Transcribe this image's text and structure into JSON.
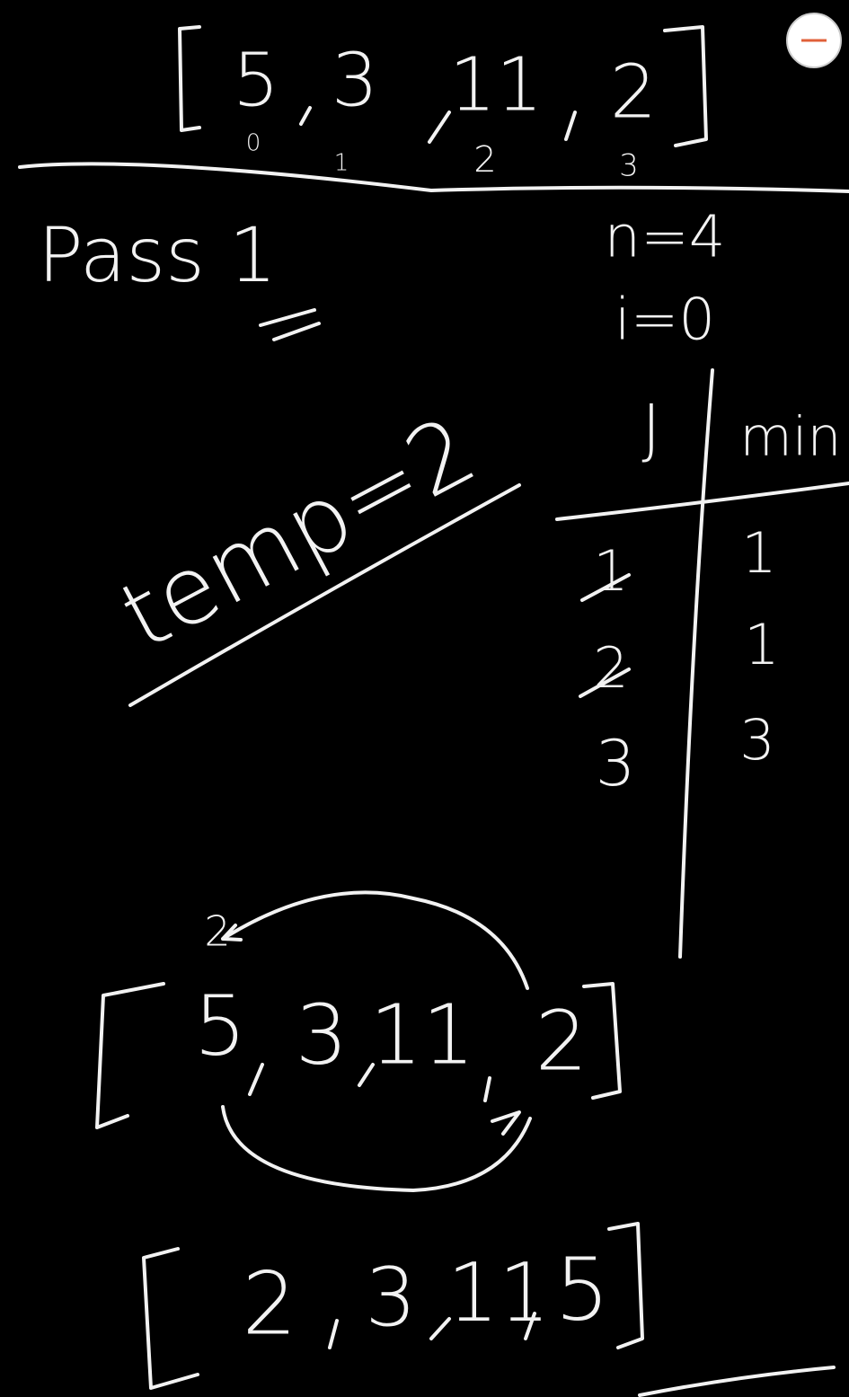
{
  "array": {
    "elements": [
      "5",
      "3",
      "11",
      "2"
    ],
    "indices": [
      "0",
      "1",
      "2",
      "3"
    ]
  },
  "pass": "Pass 1",
  "vars": [
    "n=4",
    "i=0"
  ],
  "temp": "temp=2",
  "table": {
    "header": [
      "J",
      "min"
    ],
    "rows": [
      [
        "1",
        "1"
      ],
      [
        "2",
        "1"
      ],
      [
        "3",
        "3"
      ]
    ]
  },
  "swap": {
    "label": "2",
    "elements": [
      "5",
      "3",
      "11",
      "2"
    ]
  },
  "result": [
    "2",
    "3",
    "11",
    "5"
  ]
}
